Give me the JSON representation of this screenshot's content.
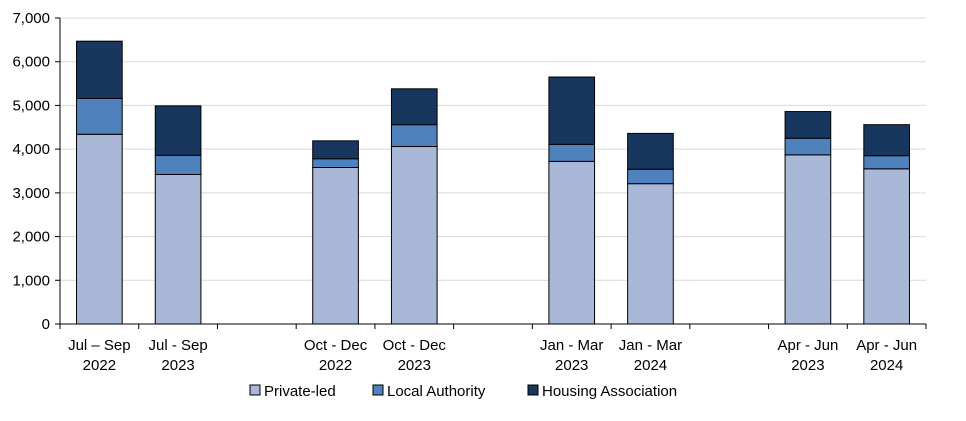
{
  "chart_data": {
    "type": "bar",
    "stacked": true,
    "title": "",
    "xlabel": "",
    "ylabel": "",
    "ylim": [
      0,
      7000
    ],
    "yticks": [
      0,
      1000,
      2000,
      3000,
      4000,
      5000,
      6000,
      7000
    ],
    "ytick_labels": [
      "0",
      "1,000",
      "2,000",
      "3,000",
      "4,000",
      "5,000",
      "6,000",
      "7,000"
    ],
    "grid": true,
    "legend_position": "bottom",
    "categories": [
      {
        "line1": "Jul – Sep",
        "line2": "2022"
      },
      {
        "line1": "Jul - Sep",
        "line2": "2023"
      },
      {
        "line1": "",
        "line2": ""
      },
      {
        "line1": "Oct - Dec",
        "line2": "2022"
      },
      {
        "line1": "Oct - Dec",
        "line2": "2023"
      },
      {
        "line1": "",
        "line2": ""
      },
      {
        "line1": "Jan - Mar",
        "line2": "2023"
      },
      {
        "line1": "Jan - Mar",
        "line2": "2024"
      },
      {
        "line1": "",
        "line2": ""
      },
      {
        "line1": "Apr - Jun",
        "line2": "2023"
      },
      {
        "line1": "Apr - Jun",
        "line2": "2024"
      }
    ],
    "series": [
      {
        "name": "Private-led",
        "color": "#a9b8d6",
        "values": [
          4340,
          3420,
          null,
          3580,
          4060,
          null,
          3720,
          3210,
          null,
          3870,
          3550
        ]
      },
      {
        "name": "Local Authority",
        "color": "#4f81bd",
        "values": [
          820,
          440,
          null,
          200,
          500,
          null,
          390,
          330,
          null,
          380,
          300
        ]
      },
      {
        "name": "Housing Association",
        "color": "#17375e",
        "values": [
          1310,
          1130,
          null,
          410,
          820,
          null,
          1540,
          820,
          null,
          610,
          710
        ]
      }
    ]
  }
}
